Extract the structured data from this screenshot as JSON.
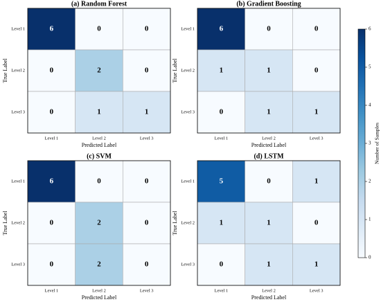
{
  "chart_data": [
    {
      "type": "heatmap",
      "title": "(a) Random Forest",
      "xlabel": "Predicted Label",
      "ylabel": "True Label",
      "x_categories": [
        "Level 1",
        "Level 2",
        "Level 3"
      ],
      "y_categories": [
        "Level 1",
        "Level 2",
        "Level 3"
      ],
      "values": [
        [
          6,
          0,
          0
        ],
        [
          0,
          2,
          0
        ],
        [
          0,
          1,
          1
        ]
      ]
    },
    {
      "type": "heatmap",
      "title": "(b) Gradient Boosting",
      "xlabel": "Predicted Label",
      "ylabel": "True Label",
      "x_categories": [
        "Level 1",
        "Level 2",
        "Level 3"
      ],
      "y_categories": [
        "Level 1",
        "Level 2",
        "Level 3"
      ],
      "values": [
        [
          6,
          0,
          0
        ],
        [
          1,
          1,
          0
        ],
        [
          0,
          1,
          1
        ]
      ]
    },
    {
      "type": "heatmap",
      "title": "(c) SVM",
      "xlabel": "Predicted Label",
      "ylabel": "True Label",
      "x_categories": [
        "Level 1",
        "Level 2",
        "Level 3"
      ],
      "y_categories": [
        "Level 1",
        "Level 2",
        "Level 3"
      ],
      "values": [
        [
          6,
          0,
          0
        ],
        [
          0,
          2,
          0
        ],
        [
          0,
          2,
          0
        ]
      ]
    },
    {
      "type": "heatmap",
      "title": "(d) LSTM",
      "xlabel": "Predicted Label",
      "ylabel": "True Label",
      "x_categories": [
        "Level 1",
        "Level 2",
        "Level 3"
      ],
      "y_categories": [
        "Level 1",
        "Level 2",
        "Level 3"
      ],
      "values": [
        [
          5,
          0,
          1
        ],
        [
          1,
          1,
          0
        ],
        [
          0,
          1,
          1
        ]
      ]
    },
    {
      "type": "colorbar",
      "label": "Number of Samples",
      "colormap": "Blues",
      "ylim": [
        0,
        6
      ],
      "yticks": [
        0,
        1,
        2,
        3,
        4,
        5,
        6
      ]
    }
  ]
}
